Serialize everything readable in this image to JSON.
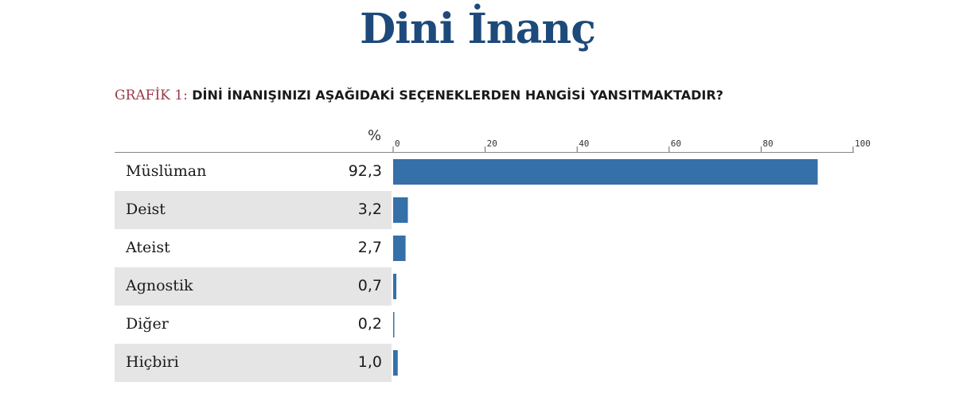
{
  "title": "Dini İnanç",
  "subtitle_prefix": "GRAFİK 1:",
  "subtitle_question": "DİNİ İNANIŞINIZI AŞAĞIDAKİ SEÇENEKLERDEN HANGİSİ YANSITMAKTADIR?",
  "unit": "%",
  "colors": {
    "bar": "#3570a8",
    "title": "#1d4a7a",
    "prefix": "#9b3a4a",
    "shaded_row": "#e5e5e5"
  },
  "chart_data": {
    "type": "bar",
    "orientation": "horizontal",
    "categories": [
      "Müslüman",
      "Deist",
      "Ateist",
      "Agnostik",
      "Diğer",
      "Hiçbiri"
    ],
    "values": [
      92.3,
      3.2,
      2.7,
      0.7,
      0.2,
      1.0
    ],
    "value_labels": [
      "92,3",
      "3,2",
      "2,7",
      "0,7",
      "0,2",
      "1,0"
    ],
    "xlim": [
      0,
      100
    ],
    "xticks": [
      0,
      20,
      40,
      60,
      80,
      100
    ],
    "xtick_labels": [
      "0",
      "20",
      "40",
      "60",
      "80",
      "100"
    ],
    "axis_position": "top",
    "grid": false
  }
}
